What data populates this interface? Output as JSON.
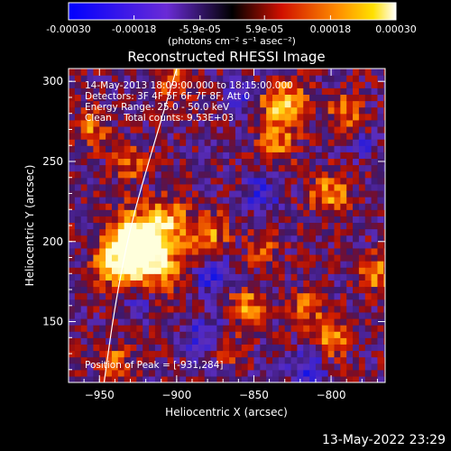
{
  "chart_data": [
    {
      "type": "heatmap",
      "role": "colorbar",
      "colormap": "blue-purple-red-yellow-white",
      "range": [
        -0.0003,
        0.0003
      ],
      "tick_labels": [
        "-0.00030",
        "-0.00018",
        "-5.9e-05",
        "5.9e-05",
        "0.00018",
        "0.00030"
      ],
      "unit_label": "(photons cm⁻² s⁻¹ asec⁻²)"
    },
    {
      "type": "heatmap",
      "title": "Reconstructed RHESSI Image",
      "xlabel": "Heliocentric X (arcsec)",
      "ylabel": "Heliocentric Y (arcsec)",
      "xlim": [
        -970,
        -765
      ],
      "ylim": [
        112,
        308
      ],
      "x_ticks": [
        -950,
        -900,
        -850,
        -800
      ],
      "x_tick_labels": [
        "−950",
        "−900",
        "−850",
        "−800"
      ],
      "y_ticks": [
        150,
        200,
        250,
        300
      ],
      "y_tick_labels": [
        "150",
        "200",
        "250",
        "300"
      ],
      "annotations": [
        "14-May-2013 18:09:00.000 to 18:15:00.000",
        "Detectors: 3F 4F 5F 6F 7F 8F, Att 0",
        "Energy Range: 25.0 - 50.0 keV",
        "Clean    Total counts: 9.53E+03"
      ],
      "peak_label": "Position of Peak = [-931,284]",
      "peak": {
        "x": -931,
        "y": 284
      },
      "total_counts": 9530,
      "energy_range_kev": [
        25.0,
        50.0
      ],
      "limb_curve": [
        [
          -947,
          112
        ],
        [
          -940,
          160
        ],
        [
          -930,
          210
        ],
        [
          -915,
          260
        ],
        [
          -900,
          308
        ]
      ],
      "hot_spots": [
        {
          "x": -920,
          "y": 195,
          "sigma": 15,
          "amp": 1.25
        },
        {
          "x": -930,
          "y": 200,
          "sigma": 10,
          "amp": 0.6
        },
        {
          "x": -940,
          "y": 185,
          "sigma": 9,
          "amp": 0.45
        },
        {
          "x": -880,
          "y": 205,
          "sigma": 9,
          "amp": 0.55
        },
        {
          "x": -905,
          "y": 215,
          "sigma": 8,
          "amp": 0.4
        },
        {
          "x": -830,
          "y": 285,
          "sigma": 10,
          "amp": 0.85
        },
        {
          "x": -835,
          "y": 260,
          "sigma": 8,
          "amp": 0.5
        },
        {
          "x": -800,
          "y": 230,
          "sigma": 9,
          "amp": 0.6
        },
        {
          "x": -790,
          "y": 280,
          "sigma": 8,
          "amp": 0.5
        },
        {
          "x": -770,
          "y": 180,
          "sigma": 8,
          "amp": 0.55
        },
        {
          "x": -845,
          "y": 195,
          "sigma": 7,
          "amp": 0.45
        },
        {
          "x": -855,
          "y": 160,
          "sigma": 8,
          "amp": 0.55
        },
        {
          "x": -815,
          "y": 160,
          "sigma": 7,
          "amp": 0.45
        },
        {
          "x": -800,
          "y": 140,
          "sigma": 9,
          "amp": 0.5
        },
        {
          "x": -870,
          "y": 135,
          "sigma": 8,
          "amp": 0.45
        },
        {
          "x": -930,
          "y": 250,
          "sigma": 8,
          "amp": 0.4
        },
        {
          "x": -955,
          "y": 270,
          "sigma": 8,
          "amp": 0.45
        },
        {
          "x": -900,
          "y": 300,
          "sigma": 8,
          "amp": 0.5
        },
        {
          "x": -940,
          "y": 125,
          "sigma": 7,
          "amp": 0.45
        }
      ],
      "cold_spots": [
        {
          "x": -875,
          "y": 180,
          "sigma": 8,
          "amp": 0.7
        },
        {
          "x": -880,
          "y": 140,
          "sigma": 9,
          "amp": 0.6
        },
        {
          "x": -815,
          "y": 120,
          "sigma": 8,
          "amp": 0.6
        },
        {
          "x": -845,
          "y": 230,
          "sigma": 8,
          "amp": 0.5
        },
        {
          "x": -925,
          "y": 160,
          "sigma": 7,
          "amp": 0.4
        },
        {
          "x": -860,
          "y": 290,
          "sigma": 7,
          "amp": 0.4
        },
        {
          "x": -780,
          "y": 260,
          "sigma": 6,
          "amp": 0.35
        }
      ]
    }
  ],
  "footer": {
    "timestamp": "13-May-2022 23:29"
  }
}
